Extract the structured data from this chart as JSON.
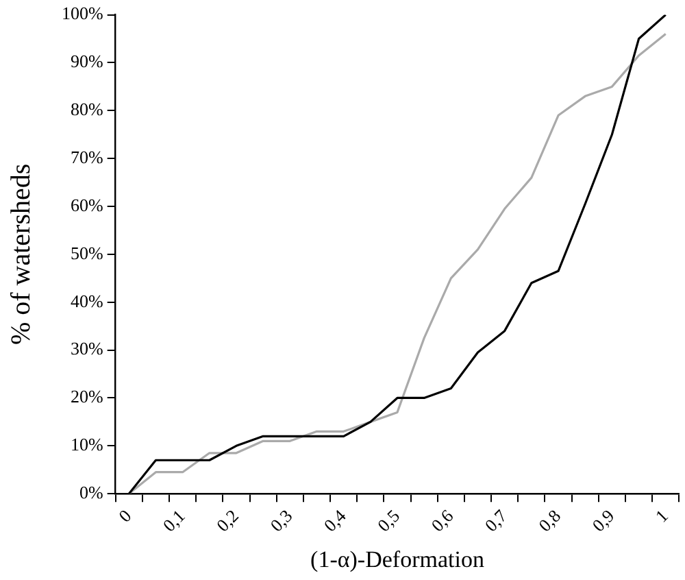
{
  "chart_data": {
    "type": "line",
    "xlabel": "(1-α)-Deformation",
    "ylabel": "% of watersheds",
    "categories": [
      "0",
      null,
      "0,1",
      null,
      "0,2",
      null,
      "0,3",
      null,
      "0,4",
      null,
      "0,5",
      null,
      "0,6",
      null,
      "0,7",
      null,
      "0,8",
      null,
      "0,9",
      null,
      "1"
    ],
    "series": [
      {
        "color": "#000000",
        "values": [
          0,
          7,
          7,
          7,
          10,
          12,
          12,
          12,
          12,
          15,
          20,
          20,
          22,
          29.5,
          34,
          44,
          46.5,
          60.5,
          75,
          95,
          100
        ]
      },
      {
        "color": "#aaaaaa",
        "values": [
          0,
          4.5,
          4.5,
          8.5,
          8.5,
          11,
          11,
          13,
          13,
          15,
          17,
          32.5,
          45,
          51,
          59.5,
          66,
          79,
          83,
          85,
          91.5,
          96
        ]
      }
    ],
    "ylim": [
      0,
      100
    ],
    "yticks": [
      {
        "value": 0,
        "label": "0%"
      },
      {
        "value": 10,
        "label": "10%"
      },
      {
        "value": 20,
        "label": "20%"
      },
      {
        "value": 30,
        "label": "30%"
      },
      {
        "value": 40,
        "label": "40%"
      },
      {
        "value": 50,
        "label": "50%"
      },
      {
        "value": 60,
        "label": "60%"
      },
      {
        "value": 70,
        "label": "70%"
      },
      {
        "value": 80,
        "label": "80%"
      },
      {
        "value": 90,
        "label": "90%"
      },
      {
        "value": 100,
        "label": "100%"
      }
    ],
    "grid": false,
    "legend": false,
    "marker": "none",
    "line_style": "solid"
  }
}
